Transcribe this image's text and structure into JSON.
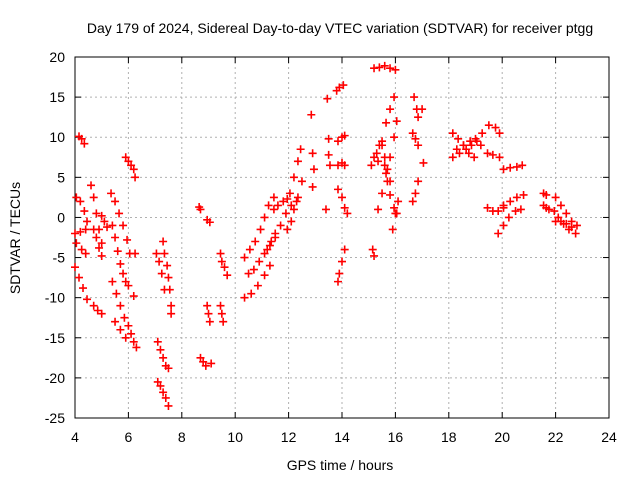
{
  "chart_data": {
    "type": "scatter",
    "title": "Day 179 of 2024, Sidereal Day-to-day VTEC variation (SDTVAR) for receiver ptgg",
    "xlabel": "GPS time / hours",
    "ylabel": "SDTVAR / TECUs",
    "xlim": [
      4,
      24
    ],
    "ylim": [
      -25,
      20
    ],
    "xticks": [
      4,
      6,
      8,
      10,
      12,
      14,
      16,
      18,
      20,
      22,
      24
    ],
    "yticks": [
      -25,
      -20,
      -15,
      -10,
      -5,
      0,
      5,
      10,
      15,
      20
    ],
    "grid": true,
    "marker": "+",
    "color": "#ff0000",
    "series_segments": [
      [
        [
          4.15,
          10.1
        ],
        [
          4.25,
          9.8
        ],
        [
          4.35,
          9.2
        ]
      ],
      [
        [
          4.05,
          2.5
        ],
        [
          4.2,
          2.0
        ],
        [
          4.35,
          0.8
        ],
        [
          4.45,
          -0.5
        ]
      ],
      [
        [
          4.0,
          -2.0
        ],
        [
          4.2,
          -1.8
        ],
        [
          4.4,
          -1.5
        ]
      ],
      [
        [
          4.0,
          -6.2
        ],
        [
          4.15,
          -7.5
        ],
        [
          4.3,
          -8.8
        ],
        [
          4.45,
          -10.2
        ]
      ],
      [
        [
          4.05,
          -3.2
        ],
        [
          4.25,
          -4.0
        ],
        [
          4.4,
          -4.5
        ]
      ],
      [
        [
          4.7,
          -11.0
        ],
        [
          4.85,
          -11.6
        ],
        [
          5.0,
          -12.0
        ]
      ],
      [
        [
          4.6,
          4.0
        ],
        [
          4.7,
          2.5
        ],
        [
          4.8,
          0.5
        ],
        [
          4.9,
          -1.5
        ],
        [
          5.0,
          -3.2
        ]
      ],
      [
        [
          4.7,
          -1.5
        ],
        [
          4.8,
          -2.5
        ],
        [
          4.9,
          -3.8
        ],
        [
          5.0,
          -4.8
        ]
      ],
      [
        [
          5.0,
          0.2
        ],
        [
          5.1,
          -0.5
        ],
        [
          5.2,
          -1.2
        ]
      ],
      [
        [
          5.35,
          3.0
        ],
        [
          5.5,
          2.0
        ],
        [
          5.65,
          0.5
        ],
        [
          5.8,
          -1.0
        ],
        [
          5.95,
          -2.8
        ],
        [
          6.05,
          -4.5
        ]
      ],
      [
        [
          5.4,
          -1.0
        ],
        [
          5.5,
          -2.5
        ],
        [
          5.6,
          -4.2
        ],
        [
          5.7,
          -5.8
        ],
        [
          5.8,
          -7.0
        ],
        [
          5.9,
          -8.0
        ],
        [
          6.0,
          -8.5
        ]
      ],
      [
        [
          5.4,
          -8.0
        ],
        [
          5.55,
          -9.5
        ],
        [
          5.7,
          -11.0
        ],
        [
          5.85,
          -12.5
        ],
        [
          6.0,
          -13.5
        ],
        [
          6.1,
          -14.5
        ]
      ],
      [
        [
          5.5,
          -13.0
        ],
        [
          5.7,
          -14.0
        ],
        [
          5.9,
          -15.0
        ]
      ],
      [
        [
          6.2,
          -15.5
        ],
        [
          6.3,
          -16.2
        ]
      ],
      [
        [
          5.9,
          7.5
        ],
        [
          6.0,
          7.0
        ],
        [
          6.1,
          6.5
        ],
        [
          6.2,
          6.0
        ]
      ],
      [
        [
          6.25,
          5.0
        ],
        [
          6.25,
          -4.5
        ],
        [
          6.2,
          -9.8
        ]
      ],
      [
        [
          7.05,
          -4.5
        ],
        [
          7.15,
          -5.5
        ],
        [
          7.25,
          -7.0
        ],
        [
          7.35,
          -9.0
        ]
      ],
      [
        [
          7.3,
          -3.0
        ],
        [
          7.35,
          -4.5
        ],
        [
          7.45,
          -6.0
        ],
        [
          7.5,
          -7.5
        ],
        [
          7.55,
          -9.0
        ],
        [
          7.6,
          -11.0
        ],
        [
          7.6,
          -12.0
        ]
      ],
      [
        [
          7.1,
          -15.5
        ],
        [
          7.2,
          -16.5
        ],
        [
          7.3,
          -17.5
        ],
        [
          7.4,
          -18.5
        ],
        [
          7.5,
          -18.8
        ]
      ],
      [
        [
          7.1,
          -20.5
        ],
        [
          7.2,
          -21.0
        ],
        [
          7.3,
          -21.8
        ],
        [
          7.4,
          -22.5
        ],
        [
          7.5,
          -23.5
        ]
      ],
      [
        [
          8.65,
          1.3
        ],
        [
          8.7,
          1.0
        ]
      ],
      [
        [
          8.95,
          -0.3
        ],
        [
          9.05,
          -0.6
        ]
      ],
      [
        [
          8.95,
          -11.0
        ],
        [
          9.0,
          -12.0
        ],
        [
          9.05,
          -13.0
        ]
      ],
      [
        [
          8.7,
          -17.5
        ],
        [
          8.8,
          -18.0
        ],
        [
          8.9,
          -18.5
        ],
        [
          9.1,
          -18.2
        ]
      ],
      [
        [
          9.45,
          -4.5
        ],
        [
          9.5,
          -5.5
        ],
        [
          9.6,
          -6.2
        ],
        [
          9.7,
          -7.2
        ]
      ],
      [
        [
          9.45,
          -11.0
        ],
        [
          9.5,
          -12.0
        ],
        [
          9.55,
          -13.0
        ]
      ],
      [
        [
          10.35,
          -5.0
        ],
        [
          10.55,
          -4.0
        ],
        [
          10.75,
          -3.0
        ],
        [
          10.95,
          -1.5
        ],
        [
          11.1,
          0.0
        ],
        [
          11.25,
          1.5
        ],
        [
          11.45,
          2.5
        ]
      ],
      [
        [
          10.35,
          -10.0
        ],
        [
          10.6,
          -9.5
        ],
        [
          10.85,
          -8.5
        ],
        [
          11.1,
          -7.2
        ],
        [
          11.3,
          -6.0
        ]
      ],
      [
        [
          10.5,
          -7.0
        ],
        [
          10.7,
          -6.5
        ],
        [
          10.9,
          -5.5
        ],
        [
          11.1,
          -4.5
        ],
        [
          11.3,
          -3.5
        ],
        [
          11.5,
          -2.5
        ]
      ],
      [
        [
          11.2,
          -4.0
        ],
        [
          11.35,
          -3.0
        ],
        [
          11.5,
          -2.0
        ],
        [
          11.7,
          -1.0
        ],
        [
          11.9,
          0.5
        ],
        [
          12.1,
          1.5
        ],
        [
          12.3,
          2.0
        ]
      ],
      [
        [
          11.45,
          1.0
        ],
        [
          11.6,
          1.5
        ],
        [
          11.8,
          2.0
        ],
        [
          11.95,
          2.3
        ]
      ],
      [
        [
          12.05,
          3.0
        ],
        [
          12.2,
          5.0
        ],
        [
          12.35,
          7.0
        ],
        [
          12.45,
          8.5
        ]
      ],
      [
        [
          11.95,
          -1.5
        ],
        [
          12.1,
          -0.5
        ],
        [
          12.2,
          1.0
        ],
        [
          12.35,
          2.5
        ],
        [
          12.5,
          4.5
        ]
      ],
      [
        [
          12.85,
          12.8
        ],
        [
          12.9,
          8.0
        ],
        [
          12.95,
          6.0
        ],
        [
          12.9,
          3.8
        ]
      ],
      [
        [
          13.45,
          14.8
        ],
        [
          13.5,
          9.8
        ],
        [
          13.5,
          7.8
        ],
        [
          13.55,
          6.5
        ],
        [
          13.4,
          1.0
        ]
      ],
      [
        [
          13.8,
          15.8
        ],
        [
          13.9,
          16.2
        ],
        [
          14.05,
          16.5
        ]
      ],
      [
        [
          13.85,
          9.5
        ],
        [
          14.0,
          10.0
        ],
        [
          14.1,
          10.2
        ]
      ],
      [
        [
          13.85,
          6.5
        ],
        [
          14.0,
          6.8
        ],
        [
          14.1,
          6.5
        ]
      ],
      [
        [
          13.85,
          3.5
        ],
        [
          14.0,
          2.5
        ],
        [
          14.1,
          1.2
        ],
        [
          14.2,
          0.5
        ]
      ],
      [
        [
          13.85,
          -8.0
        ],
        [
          13.9,
          -7.0
        ],
        [
          14.0,
          -5.5
        ],
        [
          14.1,
          -4.0
        ]
      ],
      [
        [
          15.15,
          -4.0
        ],
        [
          15.2,
          -4.8
        ]
      ],
      [
        [
          15.1,
          6.5
        ],
        [
          15.2,
          7.5
        ],
        [
          15.3,
          8.0
        ],
        [
          15.4,
          9.0
        ]
      ],
      [
        [
          15.2,
          18.6
        ],
        [
          15.4,
          18.7
        ],
        [
          15.6,
          18.9
        ],
        [
          15.8,
          18.6
        ],
        [
          16.0,
          18.4
        ]
      ],
      [
        [
          15.35,
          7.0
        ],
        [
          15.5,
          9.5
        ],
        [
          15.65,
          11.8
        ],
        [
          15.8,
          13.5
        ],
        [
          15.95,
          15.0
        ]
      ],
      [
        [
          15.35,
          1.0
        ],
        [
          15.5,
          3.0
        ],
        [
          15.65,
          5.5
        ],
        [
          15.8,
          7.5
        ],
        [
          15.95,
          10.0
        ],
        [
          16.05,
          12.0
        ]
      ],
      [
        [
          15.6,
          6.5
        ],
        [
          15.7,
          4.5
        ],
        [
          15.8,
          2.8
        ],
        [
          15.95,
          1.2
        ],
        [
          16.05,
          0.5
        ]
      ],
      [
        [
          15.5,
          9.0
        ],
        [
          15.6,
          7.5
        ],
        [
          15.7,
          6.0
        ],
        [
          15.8,
          4.5
        ]
      ],
      [
        [
          15.9,
          -1.5
        ],
        [
          16.0,
          0.5
        ],
        [
          16.1,
          2.0
        ]
      ],
      [
        [
          16.7,
          15.0
        ],
        [
          16.8,
          13.5
        ],
        [
          16.85,
          12.5
        ]
      ],
      [
        [
          16.65,
          10.5
        ],
        [
          16.75,
          9.8
        ],
        [
          16.85,
          9.0
        ]
      ],
      [
        [
          16.65,
          2.0
        ],
        [
          16.75,
          3.0
        ],
        [
          16.85,
          4.5
        ]
      ],
      [
        [
          17.0,
          13.5
        ],
        [
          17.05,
          6.8
        ]
      ],
      [
        [
          18.15,
          7.5
        ],
        [
          18.4,
          8.0
        ],
        [
          18.65,
          8.5
        ],
        [
          18.85,
          9.0
        ],
        [
          19.05,
          9.5
        ],
        [
          19.25,
          10.5
        ],
        [
          19.5,
          11.5
        ],
        [
          19.75,
          11.2
        ],
        [
          19.9,
          10.5
        ]
      ],
      [
        [
          18.15,
          10.5
        ],
        [
          18.35,
          9.8
        ],
        [
          18.55,
          9.0
        ],
        [
          18.75,
          8.0
        ],
        [
          18.95,
          7.5
        ]
      ],
      [
        [
          18.3,
          8.5
        ],
        [
          18.55,
          9.0
        ],
        [
          18.8,
          9.5
        ],
        [
          19.0,
          9.8
        ],
        [
          19.2,
          9.0
        ],
        [
          19.45,
          8.0
        ],
        [
          19.65,
          7.8
        ],
        [
          19.9,
          7.5
        ]
      ],
      [
        [
          19.45,
          1.2
        ],
        [
          19.65,
          0.8
        ],
        [
          19.85,
          0.8
        ],
        [
          20.05,
          1.2
        ]
      ],
      [
        [
          19.85,
          -2.0
        ],
        [
          20.05,
          -1.0
        ],
        [
          20.25,
          0.0
        ],
        [
          20.5,
          0.8
        ],
        [
          20.7,
          1.0
        ]
      ],
      [
        [
          20.05,
          1.5
        ],
        [
          20.3,
          2.0
        ],
        [
          20.55,
          2.5
        ],
        [
          20.8,
          2.8
        ]
      ],
      [
        [
          20.05,
          6.0
        ],
        [
          20.3,
          6.2
        ],
        [
          20.55,
          6.3
        ],
        [
          20.75,
          6.5
        ]
      ],
      [
        [
          21.55,
          3.0
        ],
        [
          21.65,
          2.8
        ]
      ],
      [
        [
          21.55,
          1.5
        ],
        [
          21.65,
          1.2
        ],
        [
          21.75,
          1.0
        ]
      ],
      [
        [
          21.95,
          0.8
        ],
        [
          22.1,
          0.0
        ],
        [
          22.3,
          -0.8
        ],
        [
          22.5,
          -1.5
        ],
        [
          22.75,
          -2.0
        ]
      ],
      [
        [
          22.0,
          2.5
        ],
        [
          22.2,
          1.5
        ],
        [
          22.4,
          0.5
        ],
        [
          22.6,
          -0.5
        ],
        [
          22.8,
          -1.0
        ]
      ],
      [
        [
          22.0,
          -0.5
        ],
        [
          22.2,
          -0.5
        ],
        [
          22.4,
          -0.8
        ],
        [
          22.6,
          -1.2
        ]
      ]
    ]
  }
}
